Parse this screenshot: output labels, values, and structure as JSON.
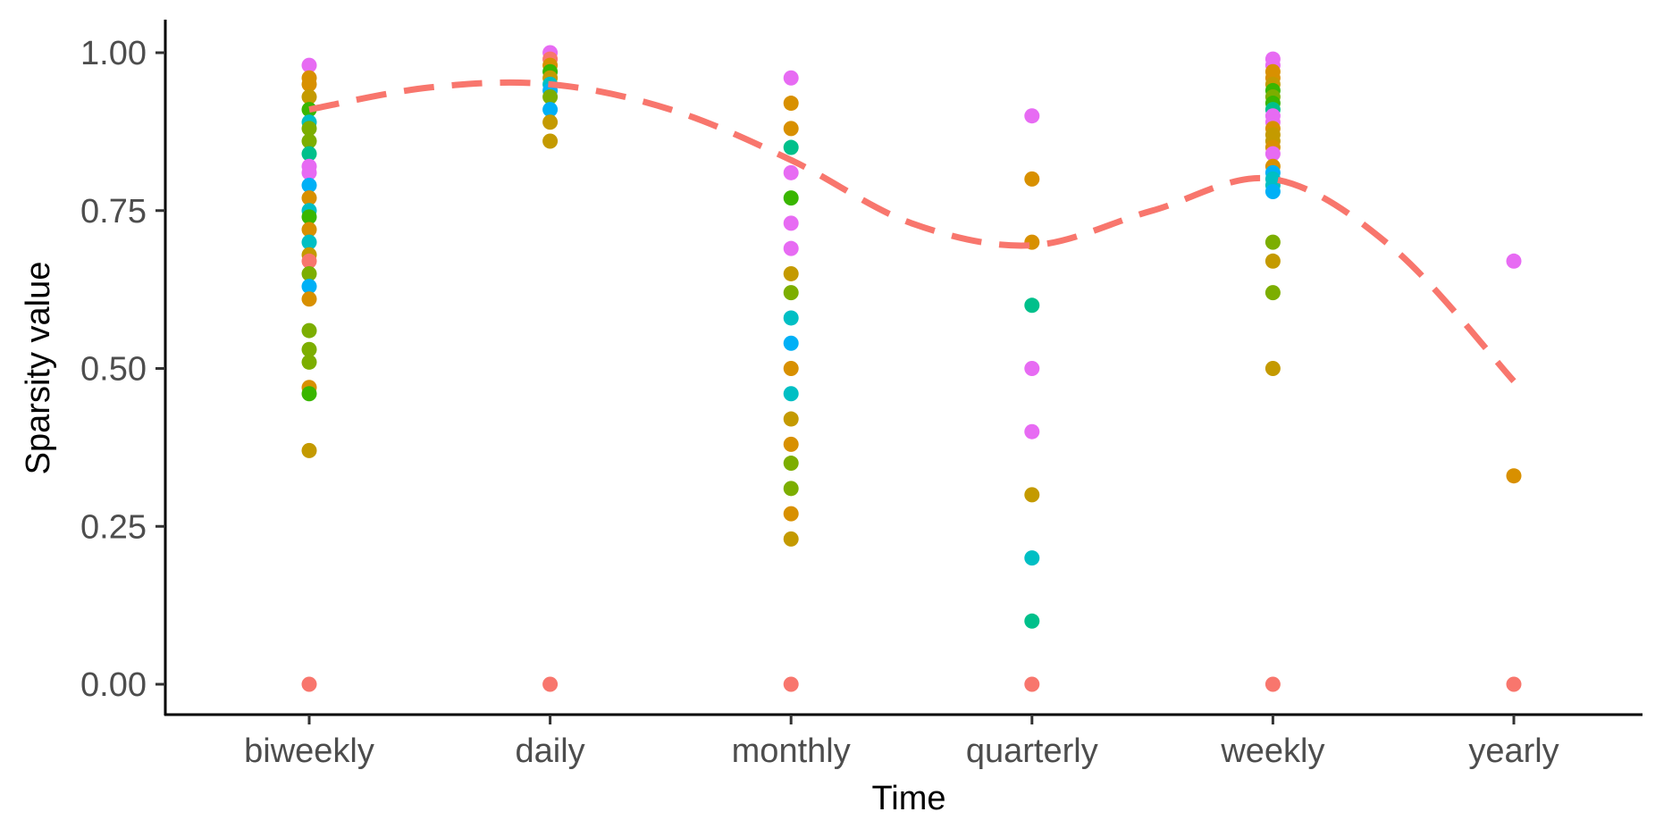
{
  "chart_data": {
    "type": "scatter",
    "xlabel": "Time",
    "ylabel": "Sparsity value",
    "categories": [
      "biweekly",
      "daily",
      "monthly",
      "quarterly",
      "weekly",
      "yearly"
    ],
    "ylim": [
      -0.05,
      1.05
    ],
    "yticks": [
      0.0,
      0.25,
      0.5,
      0.75,
      1.0
    ],
    "ytick_labels": [
      "0.00",
      "0.25",
      "0.50",
      "0.75",
      "1.00"
    ],
    "grid": false,
    "legend": "none",
    "points": [
      {
        "x": "biweekly",
        "y": 0.98,
        "color": "#E76BF3"
      },
      {
        "x": "biweekly",
        "y": 0.96,
        "color": "#D89000"
      },
      {
        "x": "biweekly",
        "y": 0.95,
        "color": "#D89000"
      },
      {
        "x": "biweekly",
        "y": 0.93,
        "color": "#C49A00"
      },
      {
        "x": "biweekly",
        "y": 0.91,
        "color": "#39B600"
      },
      {
        "x": "biweekly",
        "y": 0.89,
        "color": "#00BFC4"
      },
      {
        "x": "biweekly",
        "y": 0.88,
        "color": "#7CAE00"
      },
      {
        "x": "biweekly",
        "y": 0.86,
        "color": "#7CAE00"
      },
      {
        "x": "biweekly",
        "y": 0.84,
        "color": "#00C08B"
      },
      {
        "x": "biweekly",
        "y": 0.82,
        "color": "#E76BF3"
      },
      {
        "x": "biweekly",
        "y": 0.81,
        "color": "#E76BF3"
      },
      {
        "x": "biweekly",
        "y": 0.79,
        "color": "#00B0F6"
      },
      {
        "x": "biweekly",
        "y": 0.77,
        "color": "#D89000"
      },
      {
        "x": "biweekly",
        "y": 0.75,
        "color": "#00BFC4"
      },
      {
        "x": "biweekly",
        "y": 0.74,
        "color": "#39B600"
      },
      {
        "x": "biweekly",
        "y": 0.72,
        "color": "#D89000"
      },
      {
        "x": "biweekly",
        "y": 0.7,
        "color": "#00BFC4"
      },
      {
        "x": "biweekly",
        "y": 0.68,
        "color": "#C49A00"
      },
      {
        "x": "biweekly",
        "y": 0.67,
        "color": "#F8766D"
      },
      {
        "x": "biweekly",
        "y": 0.65,
        "color": "#7CAE00"
      },
      {
        "x": "biweekly",
        "y": 0.63,
        "color": "#00B0F6"
      },
      {
        "x": "biweekly",
        "y": 0.61,
        "color": "#D89000"
      },
      {
        "x": "biweekly",
        "y": 0.56,
        "color": "#7CAE00"
      },
      {
        "x": "biweekly",
        "y": 0.53,
        "color": "#7CAE00"
      },
      {
        "x": "biweekly",
        "y": 0.51,
        "color": "#7CAE00"
      },
      {
        "x": "biweekly",
        "y": 0.47,
        "color": "#D89000"
      },
      {
        "x": "biweekly",
        "y": 0.46,
        "color": "#39B600"
      },
      {
        "x": "biweekly",
        "y": 0.37,
        "color": "#C49A00"
      },
      {
        "x": "biweekly",
        "y": 0.0,
        "color": "#F8766D"
      },
      {
        "x": "daily",
        "y": 1.0,
        "color": "#E76BF3"
      },
      {
        "x": "daily",
        "y": 0.99,
        "color": "#F8766D"
      },
      {
        "x": "daily",
        "y": 0.98,
        "color": "#D89000"
      },
      {
        "x": "daily",
        "y": 0.97,
        "color": "#39B600"
      },
      {
        "x": "daily",
        "y": 0.96,
        "color": "#C49A00"
      },
      {
        "x": "daily",
        "y": 0.95,
        "color": "#00BFC4"
      },
      {
        "x": "daily",
        "y": 0.94,
        "color": "#00B0F6"
      },
      {
        "x": "daily",
        "y": 0.93,
        "color": "#7CAE00"
      },
      {
        "x": "daily",
        "y": 0.91,
        "color": "#00B0F6"
      },
      {
        "x": "daily",
        "y": 0.89,
        "color": "#C49A00"
      },
      {
        "x": "daily",
        "y": 0.86,
        "color": "#C49A00"
      },
      {
        "x": "daily",
        "y": 0.0,
        "color": "#F8766D"
      },
      {
        "x": "monthly",
        "y": 0.96,
        "color": "#E76BF3"
      },
      {
        "x": "monthly",
        "y": 0.92,
        "color": "#D89000"
      },
      {
        "x": "monthly",
        "y": 0.88,
        "color": "#D89000"
      },
      {
        "x": "monthly",
        "y": 0.85,
        "color": "#00C08B"
      },
      {
        "x": "monthly",
        "y": 0.81,
        "color": "#E76BF3"
      },
      {
        "x": "monthly",
        "y": 0.77,
        "color": "#39B600"
      },
      {
        "x": "monthly",
        "y": 0.73,
        "color": "#E76BF3"
      },
      {
        "x": "monthly",
        "y": 0.69,
        "color": "#E76BF3"
      },
      {
        "x": "monthly",
        "y": 0.65,
        "color": "#C49A00"
      },
      {
        "x": "monthly",
        "y": 0.62,
        "color": "#7CAE00"
      },
      {
        "x": "monthly",
        "y": 0.58,
        "color": "#00BFC4"
      },
      {
        "x": "monthly",
        "y": 0.54,
        "color": "#00B0F6"
      },
      {
        "x": "monthly",
        "y": 0.5,
        "color": "#D89000"
      },
      {
        "x": "monthly",
        "y": 0.46,
        "color": "#00BFC4"
      },
      {
        "x": "monthly",
        "y": 0.42,
        "color": "#C49A00"
      },
      {
        "x": "monthly",
        "y": 0.38,
        "color": "#D89000"
      },
      {
        "x": "monthly",
        "y": 0.35,
        "color": "#7CAE00"
      },
      {
        "x": "monthly",
        "y": 0.31,
        "color": "#7CAE00"
      },
      {
        "x": "monthly",
        "y": 0.27,
        "color": "#D89000"
      },
      {
        "x": "monthly",
        "y": 0.23,
        "color": "#C49A00"
      },
      {
        "x": "monthly",
        "y": 0.0,
        "color": "#F8766D"
      },
      {
        "x": "quarterly",
        "y": 0.9,
        "color": "#E76BF3"
      },
      {
        "x": "quarterly",
        "y": 0.8,
        "color": "#D89000"
      },
      {
        "x": "quarterly",
        "y": 0.7,
        "color": "#D89000"
      },
      {
        "x": "quarterly",
        "y": 0.6,
        "color": "#00C08B"
      },
      {
        "x": "quarterly",
        "y": 0.5,
        "color": "#E76BF3"
      },
      {
        "x": "quarterly",
        "y": 0.4,
        "color": "#E76BF3"
      },
      {
        "x": "quarterly",
        "y": 0.3,
        "color": "#C49A00"
      },
      {
        "x": "quarterly",
        "y": 0.2,
        "color": "#00BFC4"
      },
      {
        "x": "quarterly",
        "y": 0.1,
        "color": "#00C08B"
      },
      {
        "x": "quarterly",
        "y": 0.0,
        "color": "#F8766D"
      },
      {
        "x": "weekly",
        "y": 0.99,
        "color": "#E76BF3"
      },
      {
        "x": "weekly",
        "y": 0.98,
        "color": "#E76BF3"
      },
      {
        "x": "weekly",
        "y": 0.97,
        "color": "#D89000"
      },
      {
        "x": "weekly",
        "y": 0.96,
        "color": "#D89000"
      },
      {
        "x": "weekly",
        "y": 0.95,
        "color": "#C49A00"
      },
      {
        "x": "weekly",
        "y": 0.94,
        "color": "#39B600"
      },
      {
        "x": "weekly",
        "y": 0.93,
        "color": "#7CAE00"
      },
      {
        "x": "weekly",
        "y": 0.92,
        "color": "#39B600"
      },
      {
        "x": "weekly",
        "y": 0.91,
        "color": "#00C08B"
      },
      {
        "x": "weekly",
        "y": 0.9,
        "color": "#E76BF3"
      },
      {
        "x": "weekly",
        "y": 0.89,
        "color": "#E76BF3"
      },
      {
        "x": "weekly",
        "y": 0.88,
        "color": "#D89000"
      },
      {
        "x": "weekly",
        "y": 0.87,
        "color": "#C49A00"
      },
      {
        "x": "weekly",
        "y": 0.86,
        "color": "#C49A00"
      },
      {
        "x": "weekly",
        "y": 0.85,
        "color": "#D89000"
      },
      {
        "x": "weekly",
        "y": 0.84,
        "color": "#E76BF3"
      },
      {
        "x": "weekly",
        "y": 0.82,
        "color": "#D89000"
      },
      {
        "x": "weekly",
        "y": 0.81,
        "color": "#00B0F6"
      },
      {
        "x": "weekly",
        "y": 0.8,
        "color": "#00BFC4"
      },
      {
        "x": "weekly",
        "y": 0.79,
        "color": "#00BFC4"
      },
      {
        "x": "weekly",
        "y": 0.78,
        "color": "#00B0F6"
      },
      {
        "x": "weekly",
        "y": 0.7,
        "color": "#7CAE00"
      },
      {
        "x": "weekly",
        "y": 0.67,
        "color": "#C49A00"
      },
      {
        "x": "weekly",
        "y": 0.62,
        "color": "#7CAE00"
      },
      {
        "x": "weekly",
        "y": 0.5,
        "color": "#C49A00"
      },
      {
        "x": "weekly",
        "y": 0.0,
        "color": "#F8766D"
      },
      {
        "x": "yearly",
        "y": 0.67,
        "color": "#E76BF3"
      },
      {
        "x": "yearly",
        "y": 0.33,
        "color": "#D89000"
      },
      {
        "x": "yearly",
        "y": 0.0,
        "color": "#F8766D"
      }
    ],
    "trend_line": {
      "style": "dashed",
      "color": "#F8766D",
      "x": [
        1.0,
        1.5,
        2.0,
        2.5,
        3.0,
        3.5,
        4.0,
        4.5,
        5.0,
        5.5,
        6.0
      ],
      "y": [
        0.91,
        0.945,
        0.95,
        0.91,
        0.83,
        0.73,
        0.695,
        0.75,
        0.8,
        0.69,
        0.48
      ]
    }
  }
}
